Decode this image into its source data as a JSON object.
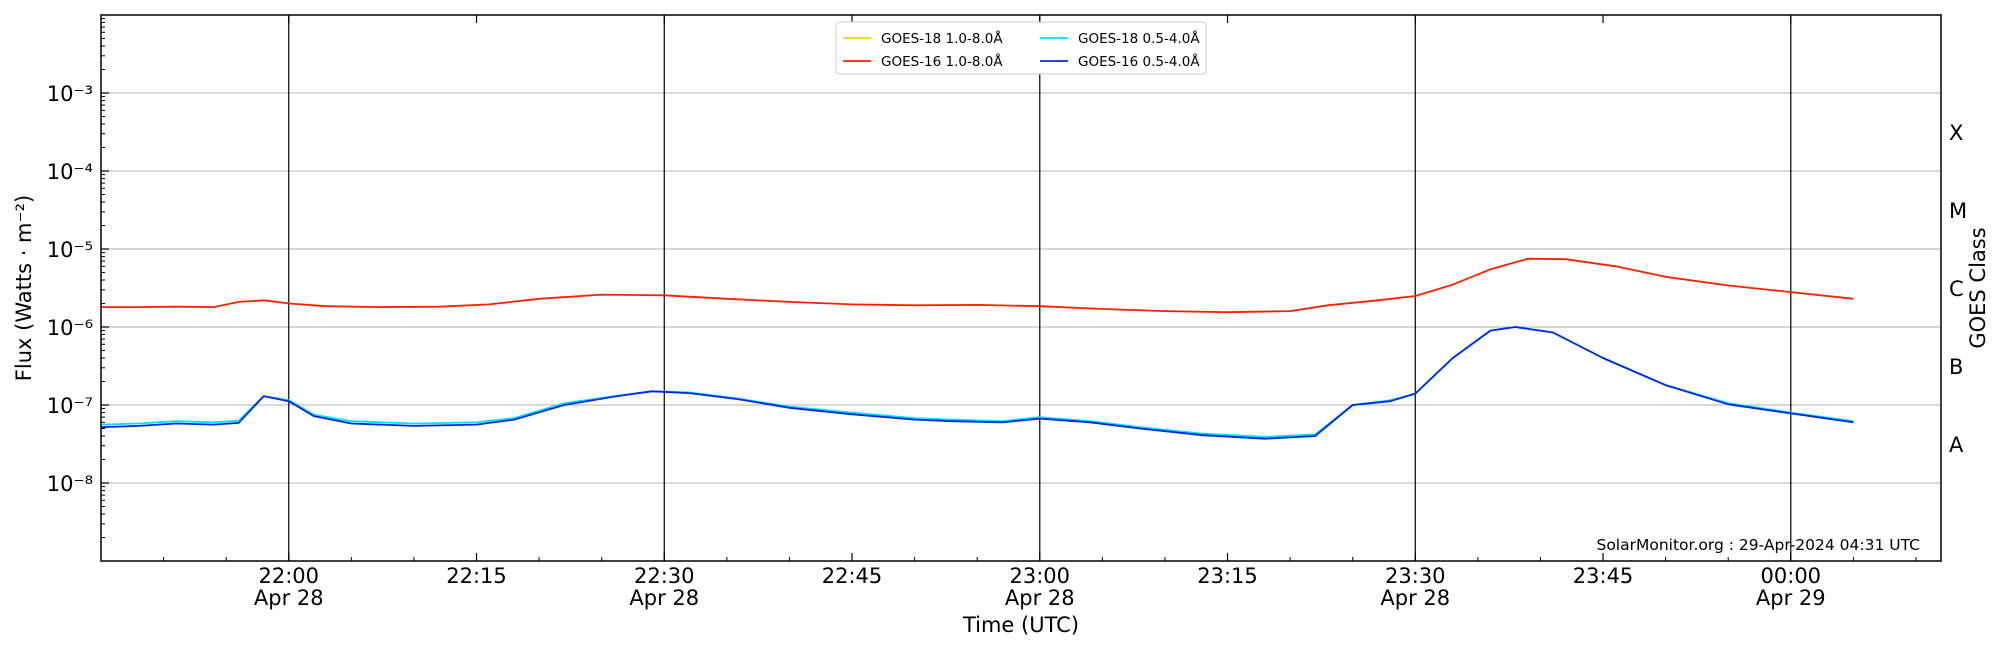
{
  "chart_data": {
    "type": "line",
    "xlabel": "Time (UTC)",
    "ylabel": "Flux (Watts · m⁻²)",
    "y_scale": "log",
    "ylim": [
      1e-09,
      0.01
    ],
    "xlim": [
      "2024-04-28 21:45",
      "2024-04-29 00:12"
    ],
    "x_ticks": [
      {
        "time": "2024-04-28 22:00",
        "line1": "22:00",
        "line2": "Apr 28",
        "major": true
      },
      {
        "time": "2024-04-28 22:15",
        "line1": "22:15",
        "line2": "",
        "major": false
      },
      {
        "time": "2024-04-28 22:30",
        "line1": "22:30",
        "line2": "Apr 28",
        "major": true
      },
      {
        "time": "2024-04-28 22:45",
        "line1": "22:45",
        "line2": "",
        "major": false
      },
      {
        "time": "2024-04-28 23:00",
        "line1": "23:00",
        "line2": "Apr 28",
        "major": true
      },
      {
        "time": "2024-04-28 23:15",
        "line1": "23:15",
        "line2": "",
        "major": false
      },
      {
        "time": "2024-04-28 23:30",
        "line1": "23:30",
        "line2": "Apr 28",
        "major": true
      },
      {
        "time": "2024-04-28 23:45",
        "line1": "23:45",
        "line2": "",
        "major": false
      },
      {
        "time": "2024-04-29 00:00",
        "line1": "00:00",
        "line2": "Apr 29",
        "major": true
      }
    ],
    "y_ticks": [
      {
        "exp": -8,
        "label": "10⁻⁸"
      },
      {
        "exp": -7,
        "label": "10⁻⁷"
      },
      {
        "exp": -6,
        "label": "10⁻⁶"
      },
      {
        "exp": -5,
        "label": "10⁻⁵"
      },
      {
        "exp": -4,
        "label": "10⁻⁴"
      },
      {
        "exp": -3,
        "label": "10⁻³"
      }
    ],
    "goes_class_axis": {
      "title": "GOES Class",
      "classes": [
        {
          "label": "A",
          "exp": -7.5
        },
        {
          "label": "B",
          "exp": -6.5
        },
        {
          "label": "C",
          "exp": -5.5
        },
        {
          "label": "M",
          "exp": -4.5
        },
        {
          "label": "X",
          "exp": -3.5
        }
      ]
    },
    "grid": {
      "horizontal": true,
      "major_vertical": true
    },
    "legend_placement": "top-center",
    "series": [
      {
        "name": "GOES-18 1.0-8.0Å",
        "color": "#ffd700",
        "points": []
      },
      {
        "name": "GOES-16 1.0-8.0Å",
        "color": "#ff2000",
        "points": [
          [
            "2024-04-28 21:45",
            1.8e-06
          ],
          [
            "2024-04-28 21:48",
            1.8e-06
          ],
          [
            "2024-04-28 21:51",
            1.82e-06
          ],
          [
            "2024-04-28 21:54",
            1.8e-06
          ],
          [
            "2024-04-28 21:56",
            2.1e-06
          ],
          [
            "2024-04-28 21:58",
            2.2e-06
          ],
          [
            "2024-04-28 22:00",
            2e-06
          ],
          [
            "2024-04-28 22:03",
            1.85e-06
          ],
          [
            "2024-04-28 22:07",
            1.8e-06
          ],
          [
            "2024-04-28 22:12",
            1.82e-06
          ],
          [
            "2024-04-28 22:16",
            1.95e-06
          ],
          [
            "2024-04-28 22:20",
            2.3e-06
          ],
          [
            "2024-04-28 22:25",
            2.6e-06
          ],
          [
            "2024-04-28 22:30",
            2.55e-06
          ],
          [
            "2024-04-28 22:35",
            2.3e-06
          ],
          [
            "2024-04-28 22:40",
            2.1e-06
          ],
          [
            "2024-04-28 22:45",
            1.95e-06
          ],
          [
            "2024-04-28 22:50",
            1.9e-06
          ],
          [
            "2024-04-28 22:55",
            1.92e-06
          ],
          [
            "2024-04-28 23:00",
            1.85e-06
          ],
          [
            "2024-04-28 23:05",
            1.7e-06
          ],
          [
            "2024-04-28 23:10",
            1.6e-06
          ],
          [
            "2024-04-28 23:15",
            1.55e-06
          ],
          [
            "2024-04-28 23:20",
            1.6e-06
          ],
          [
            "2024-04-28 23:23",
            1.9e-06
          ],
          [
            "2024-04-28 23:27",
            2.2e-06
          ],
          [
            "2024-04-28 23:30",
            2.5e-06
          ],
          [
            "2024-04-28 23:33",
            3.5e-06
          ],
          [
            "2024-04-28 23:36",
            5.5e-06
          ],
          [
            "2024-04-28 23:39",
            7.5e-06
          ],
          [
            "2024-04-28 23:42",
            7.4e-06
          ],
          [
            "2024-04-28 23:46",
            6e-06
          ],
          [
            "2024-04-28 23:50",
            4.4e-06
          ],
          [
            "2024-04-28 23:55",
            3.4e-06
          ],
          [
            "2024-04-29 00:00",
            2.8e-06
          ],
          [
            "2024-04-29 00:05",
            2.3e-06
          ]
        ]
      },
      {
        "name": "GOES-18 0.5-4.0Å",
        "color": "#00e0ff",
        "points": [
          [
            "2024-04-28 21:45",
            5.6e-08
          ],
          [
            "2024-04-28 21:48",
            5.8e-08
          ],
          [
            "2024-04-28 21:51",
            6.2e-08
          ],
          [
            "2024-04-28 21:54",
            6e-08
          ],
          [
            "2024-04-28 21:56",
            6.3e-08
          ],
          [
            "2024-04-28 21:58",
            1.3e-07
          ],
          [
            "2024-04-28 22:00",
            1.15e-07
          ],
          [
            "2024-04-28 22:02",
            7.5e-08
          ],
          [
            "2024-04-28 22:05",
            6.2e-08
          ],
          [
            "2024-04-28 22:10",
            5.8e-08
          ],
          [
            "2024-04-28 22:15",
            6e-08
          ],
          [
            "2024-04-28 22:18",
            6.8e-08
          ],
          [
            "2024-04-28 22:22",
            1.05e-07
          ],
          [
            "2024-04-28 22:26",
            1.3e-07
          ],
          [
            "2024-04-28 22:29",
            1.5e-07
          ],
          [
            "2024-04-28 22:32",
            1.45e-07
          ],
          [
            "2024-04-28 22:36",
            1.2e-07
          ],
          [
            "2024-04-28 22:40",
            9.5e-08
          ],
          [
            "2024-04-28 22:45",
            8e-08
          ],
          [
            "2024-04-28 22:50",
            6.8e-08
          ],
          [
            "2024-04-28 22:53",
            6.5e-08
          ],
          [
            "2024-04-28 22:57",
            6.2e-08
          ],
          [
            "2024-04-28 23:00",
            7e-08
          ],
          [
            "2024-04-28 23:04",
            6.2e-08
          ],
          [
            "2024-04-28 23:08",
            5.2e-08
          ],
          [
            "2024-04-28 23:13",
            4.3e-08
          ],
          [
            "2024-04-28 23:18",
            3.9e-08
          ],
          [
            "2024-04-28 23:22",
            4.2e-08
          ],
          [
            "2024-04-28 23:25",
            1e-07
          ],
          [
            "2024-04-28 23:28",
            1.15e-07
          ],
          [
            "2024-04-28 23:30",
            1.4e-07
          ],
          [
            "2024-04-28 23:33",
            4e-07
          ],
          [
            "2024-04-28 23:36",
            9e-07
          ],
          [
            "2024-04-28 23:38",
            1e-06
          ],
          [
            "2024-04-28 23:41",
            8.5e-07
          ],
          [
            "2024-04-28 23:45",
            4e-07
          ],
          [
            "2024-04-28 23:50",
            1.8e-07
          ],
          [
            "2024-04-28 23:55",
            1.05e-07
          ],
          [
            "2024-04-29 00:00",
            8e-08
          ],
          [
            "2024-04-29 00:05",
            6.2e-08
          ]
        ]
      },
      {
        "name": "GOES-16 0.5-4.0Å",
        "color": "#0028e0",
        "points": [
          [
            "2024-04-28 21:45",
            5.2e-08
          ],
          [
            "2024-04-28 21:48",
            5.4e-08
          ],
          [
            "2024-04-28 21:51",
            5.8e-08
          ],
          [
            "2024-04-28 21:54",
            5.6e-08
          ],
          [
            "2024-04-28 21:56",
            5.9e-08
          ],
          [
            "2024-04-28 21:58",
            1.3e-07
          ],
          [
            "2024-04-28 22:00",
            1.12e-07
          ],
          [
            "2024-04-28 22:02",
            7.2e-08
          ],
          [
            "2024-04-28 22:05",
            5.8e-08
          ],
          [
            "2024-04-28 22:10",
            5.4e-08
          ],
          [
            "2024-04-28 22:15",
            5.6e-08
          ],
          [
            "2024-04-28 22:18",
            6.5e-08
          ],
          [
            "2024-04-28 22:22",
            1e-07
          ],
          [
            "2024-04-28 22:26",
            1.28e-07
          ],
          [
            "2024-04-28 22:29",
            1.5e-07
          ],
          [
            "2024-04-28 22:32",
            1.42e-07
          ],
          [
            "2024-04-28 22:36",
            1.18e-07
          ],
          [
            "2024-04-28 22:40",
            9.2e-08
          ],
          [
            "2024-04-28 22:45",
            7.6e-08
          ],
          [
            "2024-04-28 22:50",
            6.5e-08
          ],
          [
            "2024-04-28 22:53",
            6.2e-08
          ],
          [
            "2024-04-28 22:57",
            6e-08
          ],
          [
            "2024-04-28 23:00",
            6.7e-08
          ],
          [
            "2024-04-28 23:04",
            6e-08
          ],
          [
            "2024-04-28 23:08",
            5e-08
          ],
          [
            "2024-04-28 23:13",
            4.1e-08
          ],
          [
            "2024-04-28 23:18",
            3.7e-08
          ],
          [
            "2024-04-28 23:22",
            4e-08
          ],
          [
            "2024-04-28 23:25",
            1e-07
          ],
          [
            "2024-04-28 23:28",
            1.12e-07
          ],
          [
            "2024-04-28 23:30",
            1.4e-07
          ],
          [
            "2024-04-28 23:33",
            4e-07
          ],
          [
            "2024-04-28 23:36",
            9e-07
          ],
          [
            "2024-04-28 23:38",
            1e-06
          ],
          [
            "2024-04-28 23:41",
            8.5e-07
          ],
          [
            "2024-04-28 23:45",
            4e-07
          ],
          [
            "2024-04-28 23:50",
            1.8e-07
          ],
          [
            "2024-04-28 23:55",
            1.02e-07
          ],
          [
            "2024-04-29 00:00",
            7.8e-08
          ],
          [
            "2024-04-29 00:05",
            6e-08
          ]
        ]
      }
    ]
  },
  "credit": "SolarMonitor.org : 29-Apr-2024 04:31 UTC"
}
